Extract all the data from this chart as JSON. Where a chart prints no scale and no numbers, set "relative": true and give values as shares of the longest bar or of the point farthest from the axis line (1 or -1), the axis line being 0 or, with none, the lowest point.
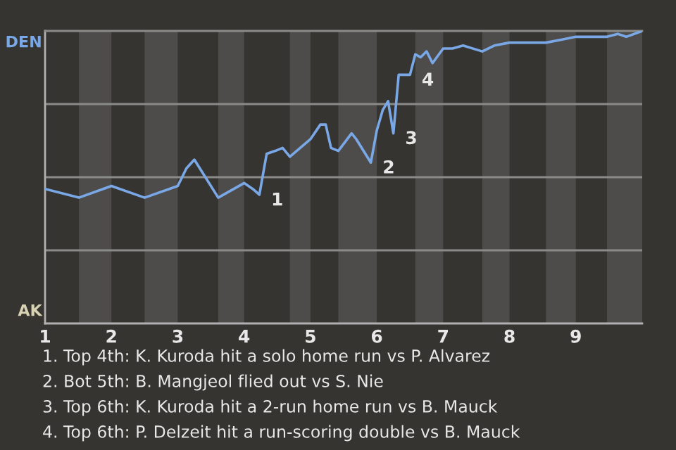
{
  "chart_data": {
    "type": "line",
    "relative": true,
    "xlim": [
      1,
      10
    ],
    "xticks": [
      1,
      2,
      3,
      4,
      5,
      6,
      7,
      8,
      9
    ],
    "marker": "none",
    "line_style": "solid",
    "series": [
      {
        "color": "#7aa8e6",
        "x": [
          1.0,
          1.51,
          2.0,
          2.5,
          3.0,
          3.13,
          3.25,
          3.61,
          4.0,
          4.13,
          4.23,
          4.34,
          4.47,
          4.58,
          4.69,
          5.0,
          5.15,
          5.23,
          5.31,
          5.42,
          5.62,
          5.69,
          5.91,
          6.0,
          6.09,
          6.17,
          6.25,
          6.33,
          6.5,
          6.58,
          6.66,
          6.75,
          6.84,
          7.0,
          7.14,
          7.3,
          7.59,
          7.77,
          8.0,
          8.35,
          8.55,
          8.78,
          9.0,
          9.47,
          9.63,
          9.76,
          10.0
        ],
        "values": [
          0.46,
          0.43,
          0.47,
          0.43,
          0.47,
          0.53,
          0.56,
          0.43,
          0.48,
          0.46,
          0.44,
          0.58,
          0.59,
          0.6,
          0.57,
          0.63,
          0.68,
          0.68,
          0.6,
          0.59,
          0.65,
          0.63,
          0.55,
          0.66,
          0.73,
          0.76,
          0.65,
          0.85,
          0.85,
          0.92,
          0.91,
          0.93,
          0.89,
          0.94,
          0.94,
          0.95,
          0.93,
          0.95,
          0.96,
          0.96,
          0.96,
          0.97,
          0.98,
          0.98,
          0.99,
          0.98,
          1.0
        ]
      }
    ],
    "ref_lines": [
      {
        "axis": "y",
        "value": 0.25,
        "label": null,
        "color": "#8a8a88"
      },
      {
        "axis": "y",
        "value": 0.5,
        "label": null,
        "color": "#8a8a88"
      },
      {
        "axis": "y",
        "value": 0.75,
        "label": null,
        "color": "#8a8a88"
      }
    ],
    "bands": [
      {
        "axis": "x",
        "from": 1.51,
        "to": 2.0,
        "label": null,
        "color": "#4d4c4a"
      },
      {
        "axis": "x",
        "from": 2.5,
        "to": 3.0,
        "label": null,
        "color": "#4d4c4a"
      },
      {
        "axis": "x",
        "from": 3.61,
        "to": 4.0,
        "label": null,
        "color": "#4d4c4a"
      },
      {
        "axis": "x",
        "from": 4.69,
        "to": 5.0,
        "label": null,
        "color": "#4d4c4a"
      },
      {
        "axis": "x",
        "from": 5.42,
        "to": 6.0,
        "label": null,
        "color": "#4d4c4a"
      },
      {
        "axis": "x",
        "from": 6.58,
        "to": 7.0,
        "label": null,
        "color": "#4d4c4a"
      },
      {
        "axis": "x",
        "from": 7.59,
        "to": 8.0,
        "label": null,
        "color": "#4d4c4a"
      },
      {
        "axis": "x",
        "from": 8.55,
        "to": 9.0,
        "label": null,
        "color": "#4d4c4a"
      },
      {
        "axis": "x",
        "from": 9.47,
        "to": 10.0,
        "label": null,
        "color": "#4d4c4a"
      }
    ],
    "annotations": [
      "DEN",
      "AK",
      {
        "text": "1",
        "x": 4.23,
        "y": 0.44
      },
      {
        "text": "2",
        "x": 5.91,
        "y": 0.55
      },
      {
        "text": "3",
        "x": 6.25,
        "y": 0.65
      },
      {
        "text": "4",
        "x": 6.5,
        "y": 0.85
      },
      "1. Top 4th: K. Kuroda hit a solo home run vs P. Alvarez",
      "2. Bot 5th: B. Mangjeol flied out vs S. Nie",
      "3. Top 6th: K. Kuroda hit a 2-run home run vs B. Mauck",
      "4. Top 6th: P. Delzeit hit a run-scoring double vs B. Mauck"
    ]
  }
}
